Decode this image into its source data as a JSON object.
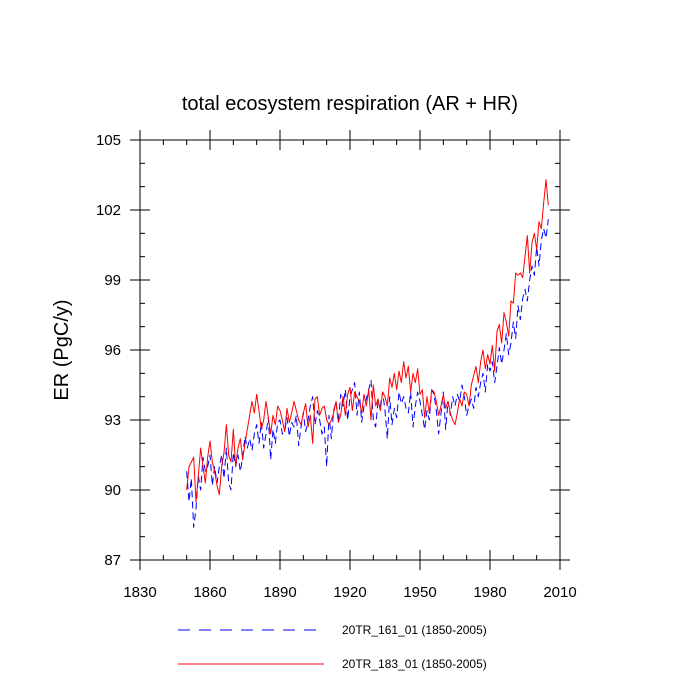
{
  "chart_data": {
    "type": "line",
    "title": "total ecosystem respiration (AR + HR)",
    "xlabel": "",
    "ylabel": "ER  (PgC/y)",
    "xlim": [
      1830,
      2010
    ],
    "ylim": [
      87,
      105
    ],
    "xticks": [
      1830,
      1860,
      1890,
      1920,
      1950,
      1980,
      2010
    ],
    "yticks": [
      87,
      90,
      93,
      96,
      99,
      102,
      105
    ],
    "x_minor_step": 10,
    "y_minor_step": 1,
    "legend_position": "bottom",
    "series": [
      {
        "name": "20TR_161_01 (1850-2005)",
        "color": "#0000ff",
        "style": "dashed",
        "x_start": 1850,
        "x_step": 1,
        "values": [
          90.8,
          89.5,
          90.5,
          88.4,
          89.2,
          90.6,
          90.0,
          91.4,
          90.8,
          91.0,
          91.5,
          90.2,
          91.0,
          90.3,
          91.0,
          91.5,
          90.5,
          91.8,
          90.3,
          90.0,
          91.6,
          91.0,
          91.5,
          90.8,
          91.4,
          92.3,
          91.8,
          92.2,
          91.7,
          92.4,
          92.8,
          92.0,
          92.9,
          91.8,
          92.4,
          93.1,
          91.3,
          92.6,
          92.0,
          92.9,
          93.0,
          92.4,
          92.5,
          93.1,
          92.3,
          92.9,
          92.7,
          93.2,
          91.9,
          92.7,
          93.3,
          92.5,
          93.0,
          93.6,
          94.0,
          92.8,
          93.4,
          93.0,
          92.4,
          92.7,
          91.0,
          93.2,
          92.2,
          93.4,
          93.8,
          92.9,
          94.1,
          93.6,
          94.3,
          93.0,
          94.0,
          94.3,
          94.6,
          93.2,
          94.2,
          92.9,
          93.6,
          93.9,
          94.3,
          94.7,
          93.0,
          92.7,
          93.8,
          93.6,
          94.2,
          93.4,
          92.2,
          94.0,
          92.8,
          93.5,
          93.1,
          94.2,
          93.7,
          94.0,
          93.5,
          93.3,
          94.2,
          92.7,
          93.6,
          94.2,
          93.8,
          93.2,
          92.6,
          93.4,
          93.0,
          94.3,
          94.1,
          93.4,
          92.4,
          93.3,
          94.2,
          92.6,
          93.8,
          93.2,
          94.0,
          93.6,
          94.1,
          93.8,
          94.5,
          94.0,
          93.2,
          93.6,
          93.9,
          93.5,
          94.4,
          94.0,
          94.6,
          95.0,
          94.2,
          95.4,
          95.1,
          95.5,
          94.6,
          95.3,
          96.1,
          95.4,
          96.0,
          96.7,
          95.8,
          96.3,
          97.2,
          96.5,
          97.9,
          97.3,
          98.2,
          98.6,
          98.1,
          99.0,
          99.6,
          99.2,
          100.4,
          99.6,
          100.7,
          101.2,
          100.8,
          101.6
        ]
      },
      {
        "name": "20TR_183_01 (1850-2005)",
        "color": "#ff0000",
        "style": "solid",
        "x_start": 1850,
        "x_step": 1,
        "values": [
          90.0,
          91.0,
          91.2,
          91.4,
          89.5,
          90.6,
          91.8,
          91.0,
          90.3,
          91.4,
          92.1,
          91.2,
          90.8,
          90.2,
          89.8,
          91.0,
          91.6,
          92.8,
          91.5,
          91.2,
          92.6,
          91.0,
          91.8,
          92.2,
          91.3,
          92.0,
          92.6,
          93.2,
          93.8,
          93.3,
          94.1,
          93.4,
          92.6,
          93.0,
          93.8,
          93.1,
          92.4,
          93.2,
          92.8,
          93.6,
          93.4,
          93.0,
          92.5,
          93.5,
          92.9,
          93.3,
          93.8,
          93.4,
          93.0,
          92.8,
          93.3,
          93.7,
          92.7,
          93.2,
          92.0,
          93.9,
          94.0,
          93.2,
          93.5,
          93.6,
          93.0,
          92.8,
          93.0,
          93.3,
          93.8,
          92.9,
          93.2,
          94.0,
          93.2,
          94.1,
          94.4,
          93.4,
          94.2,
          94.0,
          93.8,
          93.3,
          94.1,
          93.6,
          94.3,
          93.0,
          94.5,
          93.6,
          93.9,
          93.4,
          94.2,
          94.0,
          93.6,
          94.8,
          94.4,
          95.0,
          94.3,
          95.1,
          94.6,
          95.5,
          94.8,
          95.3,
          94.2,
          95.0,
          94.6,
          95.2,
          94.1,
          94.3,
          93.1,
          94.0,
          93.3,
          94.3,
          94.2,
          93.8,
          93.2,
          93.6,
          94.1,
          93.5,
          93.8,
          93.3,
          93.0,
          92.8,
          93.3,
          93.9,
          93.6,
          94.2,
          94.1,
          93.6,
          94.5,
          94.9,
          95.3,
          94.6,
          95.5,
          96.0,
          95.2,
          95.8,
          95.4,
          96.2,
          95.1,
          96.8,
          97.1,
          96.3,
          97.6,
          97.2,
          96.6,
          98.1,
          98.0,
          99.3,
          99.2,
          99.3,
          99.1,
          100.0,
          100.9,
          99.3,
          100.6,
          101.0,
          100.3,
          101.5,
          101.2,
          102.3,
          103.3,
          102.2
        ]
      }
    ]
  }
}
